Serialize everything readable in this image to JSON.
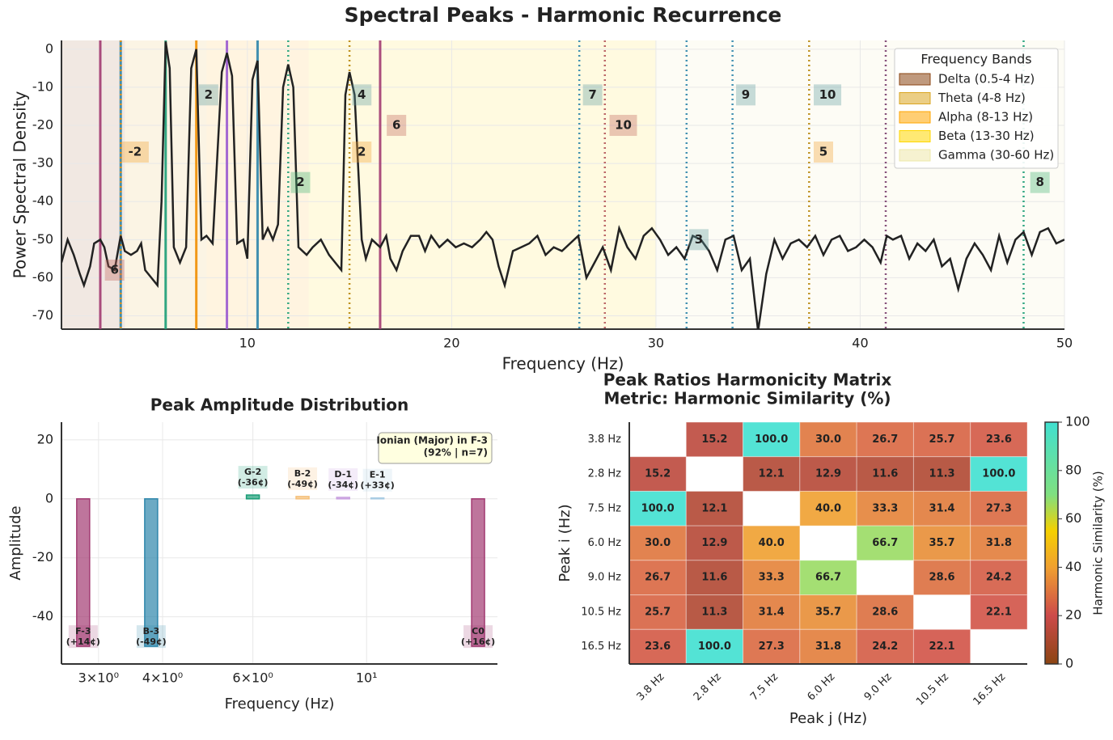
{
  "chart_data": [
    {
      "type": "line",
      "title": "Spectral Peaks - Harmonic Recurrence",
      "x_label": "Frequency (Hz)",
      "y_label": "Power Spectral Density",
      "xlim": [
        0.9,
        50
      ],
      "ylim": [
        -73.5,
        2.3
      ],
      "xticks": [
        10,
        20,
        30,
        40,
        50
      ],
      "yticks": [
        0,
        -10,
        -20,
        -30,
        -40,
        -50,
        -60,
        -70
      ],
      "grid": true,
      "color": "#222222",
      "x": [
        0.9,
        1.2,
        1.5,
        1.8,
        2.0,
        2.3,
        2.5,
        2.8,
        3.0,
        3.2,
        3.5,
        3.8,
        4.0,
        4.3,
        4.6,
        4.8,
        5.0,
        5.3,
        5.6,
        5.8,
        6.0,
        6.2,
        6.4,
        6.7,
        7.0,
        7.25,
        7.5,
        7.75,
        8.0,
        8.3,
        8.75,
        9.0,
        9.25,
        9.5,
        9.8,
        10.0,
        10.25,
        10.5,
        10.75,
        11.0,
        11.25,
        11.5,
        11.75,
        12.0,
        12.25,
        12.5,
        12.9,
        13.2,
        13.6,
        14.0,
        14.3,
        14.6,
        14.8,
        15.0,
        15.25,
        15.6,
        15.8,
        16.1,
        16.5,
        16.8,
        17.0,
        17.3,
        17.6,
        18.0,
        18.4,
        18.7,
        19.0,
        19.4,
        19.8,
        20.2,
        20.6,
        21.0,
        21.4,
        21.7,
        22.0,
        22.3,
        22.6,
        23.0,
        23.4,
        23.8,
        24.2,
        24.6,
        25.0,
        25.4,
        25.8,
        26.2,
        26.6,
        27.0,
        27.4,
        27.8,
        28.2,
        28.6,
        29.0,
        29.4,
        29.8,
        30.2,
        30.6,
        31.0,
        31.4,
        31.8,
        32.2,
        32.6,
        33.0,
        33.4,
        33.8,
        34.2,
        34.6,
        35.0,
        35.4,
        35.8,
        36.2,
        36.6,
        37.0,
        37.4,
        37.8,
        38.2,
        38.6,
        39.0,
        39.4,
        39.8,
        40.2,
        40.6,
        41.0,
        41.3,
        41.6,
        42.0,
        42.4,
        42.8,
        43.2,
        43.6,
        44.0,
        44.4,
        44.8,
        45.2,
        45.6,
        46.0,
        46.4,
        46.8,
        47.2,
        47.6,
        48.0,
        48.4,
        48.8,
        49.2,
        49.6,
        50.0
      ],
      "values": [
        -56,
        -50,
        -54,
        -59,
        -62,
        -57,
        -51,
        -50,
        -52,
        -57,
        -58,
        -49,
        -53,
        -54,
        -53,
        -51,
        -58,
        -60,
        -62,
        -40,
        2,
        -5,
        -52,
        -56,
        -52,
        -5,
        0,
        -50,
        -49,
        -51,
        -6,
        -1,
        -7,
        -51,
        -50,
        -55,
        -8,
        -3,
        -50,
        -47,
        -50,
        -46,
        -10,
        -4,
        -10,
        -52,
        -54,
        -52,
        -50,
        -54,
        -56,
        -58,
        -12,
        -6,
        -12,
        -50,
        -55,
        -50,
        -52,
        -49,
        -55,
        -58,
        -53,
        -49,
        -49,
        -53,
        -49,
        -52,
        -50,
        -52,
        -51,
        -52,
        -50,
        -48,
        -50,
        -57,
        -62,
        -53,
        -52,
        -51,
        -49,
        -54,
        -52,
        -53,
        -51,
        -49,
        -60,
        -56,
        -52,
        -58,
        -47,
        -52,
        -55,
        -49,
        -47,
        -50,
        -54,
        -52,
        -55,
        -49,
        -50,
        -53,
        -58,
        -50,
        -49,
        -58,
        -55,
        -74,
        -59,
        -50,
        -55,
        -51,
        -50,
        -52,
        -49,
        -54,
        -50,
        -49,
        -53,
        -52,
        -50,
        -52,
        -56,
        -49,
        -50,
        -49,
        -55,
        -51,
        -53,
        -50,
        -57,
        -55,
        -63,
        -55,
        -51,
        -54,
        -58,
        -49,
        -56,
        -50,
        -48,
        -54,
        -48,
        -47,
        -51,
        -50
      ],
      "bands": [
        {
          "name": "Delta (0.5-4 Hz)",
          "range": [
            0.5,
            4
          ],
          "color": "#8b4513"
        },
        {
          "name": "Theta (4-8 Hz)",
          "range": [
            4,
            8
          ],
          "color": "#daa520"
        },
        {
          "name": "Alpha (8-13 Hz)",
          "range": [
            8,
            13
          ],
          "color": "#ffa500"
        },
        {
          "name": "Beta (13-30 Hz)",
          "range": [
            13,
            30
          ],
          "color": "#ffd700"
        },
        {
          "name": "Gamma (30-60 Hz)",
          "range": [
            30,
            60
          ],
          "color": "#eee8aa"
        }
      ],
      "legend_title": "Frequency Bands",
      "legend": "upper right",
      "peak_lines": [
        {
          "x": 2.8,
          "color": "#a23b72",
          "style": "solid"
        },
        {
          "x": 3.8,
          "color": "#2e86ab",
          "style": "solid"
        },
        {
          "x": 3.8,
          "color": "#f18f01",
          "style": "dotted"
        },
        {
          "x": 6.0,
          "color": "#1b9e77",
          "style": "solid"
        },
        {
          "x": 7.5,
          "color": "#f18f01",
          "style": "solid"
        },
        {
          "x": 9.0,
          "color": "#9b59d0",
          "style": "solid"
        },
        {
          "x": 10.5,
          "color": "#2e86ab",
          "style": "solid"
        },
        {
          "x": 16.5,
          "color": "#a23b72",
          "style": "solid"
        },
        {
          "x": 12.0,
          "color": "#1b9e77",
          "style": "dotted"
        },
        {
          "x": 15.0,
          "color": "#b8860b",
          "style": "dotted"
        },
        {
          "x": 26.25,
          "color": "#2e86ab",
          "style": "dotted"
        },
        {
          "x": 27.5,
          "color": "#b5575a",
          "style": "dotted"
        },
        {
          "x": 31.5,
          "color": "#2e86ab",
          "style": "dotted"
        },
        {
          "x": 33.75,
          "color": "#2e86ab",
          "style": "dotted"
        },
        {
          "x": 37.5,
          "color": "#b8860b",
          "style": "dotted"
        },
        {
          "x": 41.25,
          "color": "#7b3f6e",
          "style": "dotted"
        },
        {
          "x": 48.0,
          "color": "#1b9e77",
          "style": "dotted"
        }
      ],
      "annotations": [
        {
          "text": "2",
          "x": 8.1,
          "y": -12,
          "color": "#5f9ea0"
        },
        {
          "text": "4",
          "x": 15.6,
          "y": -12,
          "color": "#5f9ea0"
        },
        {
          "text": "6",
          "x": 17.3,
          "y": -20,
          "color": "#c0605a"
        },
        {
          "text": "-2",
          "x": 4.5,
          "y": -27,
          "color": "#f0a030"
        },
        {
          "text": "2",
          "x": 15.6,
          "y": -27,
          "color": "#f0a030"
        },
        {
          "text": "2",
          "x": 12.6,
          "y": -35,
          "color": "#3cb371"
        },
        {
          "text": "7",
          "x": 26.9,
          "y": -12,
          "color": "#5f9ea0"
        },
        {
          "text": "10",
          "x": 28.4,
          "y": -20,
          "color": "#c0605a"
        },
        {
          "text": "9",
          "x": 34.4,
          "y": -12,
          "color": "#5f9ea0"
        },
        {
          "text": "10",
          "x": 38.4,
          "y": -12,
          "color": "#5f9ea0"
        },
        {
          "text": "5",
          "x": 38.2,
          "y": -27,
          "color": "#f0a030"
        },
        {
          "text": "3",
          "x": 32.1,
          "y": -50,
          "color": "#5f9ea0"
        },
        {
          "text": "8",
          "x": 48.8,
          "y": -35,
          "color": "#3cb371"
        },
        {
          "text": "6",
          "x": 3.5,
          "y": -58,
          "color": "#c0605a"
        }
      ]
    },
    {
      "type": "bar",
      "title": "Peak Amplitude Distribution",
      "x_label": "Frequency (Hz)",
      "y_label": "Amplitude",
      "log_x": true,
      "xlim": [
        2.54,
        18
      ],
      "ylim": [
        -56,
        26
      ],
      "xticks": [
        {
          "value": 3,
          "label": "3×10⁰"
        },
        {
          "value": 4,
          "label": "4×10⁰"
        },
        {
          "value": 6,
          "label": "6×10⁰"
        },
        {
          "value": 10,
          "label": "10¹"
        }
      ],
      "yticks": [
        -40,
        -20,
        0,
        20
      ],
      "grid": true,
      "x": [
        2.8,
        3.8,
        6.0,
        7.5,
        9.0,
        10.5,
        16.5
      ],
      "values": [
        -50,
        -50,
        1.3,
        0.8,
        0.5,
        0.3,
        -50
      ],
      "colors": [
        "#a23b72",
        "#2e86ab",
        "#1b9e77",
        "#f5c07a",
        "#c9a0e0",
        "#a9cce3",
        "#a23b72"
      ],
      "note_labels": [
        [
          "F-3",
          "(+14¢)"
        ],
        [
          "B-3",
          "(-49¢)"
        ],
        [
          "G-2",
          "(-36¢)"
        ],
        [
          "B-2",
          "(-49¢)"
        ],
        [
          "D-1",
          "(-34¢)"
        ],
        [
          "E-1",
          "(+33¢)"
        ],
        [
          "C0",
          "(+16¢)"
        ]
      ],
      "annotation": [
        "Ionian (Major) in F-3",
        "(92% | n=7)"
      ]
    },
    {
      "type": "heatmap",
      "title": "Peak Ratios Harmonicity Matrix",
      "subtitle": "Metric: Harmonic Similarity (%)",
      "x_label": "Peak j (Hz)",
      "y_label": "Peak i (Hz)",
      "colorbar_label": "Harmonic Similarity (%)",
      "categories": [
        "3.8 Hz",
        "2.8 Hz",
        "7.5 Hz",
        "6.0 Hz",
        "9.0 Hz",
        "10.5 Hz",
        "16.5 Hz"
      ],
      "clim": [
        0,
        100
      ],
      "cticks": [
        0,
        20,
        40,
        60,
        80,
        100
      ],
      "values": [
        [
          null,
          15.2,
          100,
          30,
          26.7,
          25.7,
          23.6
        ],
        [
          15.2,
          null,
          12.1,
          12.9,
          11.6,
          11.3,
          100
        ],
        [
          100,
          12.1,
          null,
          40,
          33.3,
          31.4,
          27.3
        ],
        [
          30,
          12.9,
          40,
          null,
          66.7,
          35.7,
          31.8
        ],
        [
          26.7,
          11.6,
          33.3,
          66.7,
          null,
          28.6,
          24.2
        ],
        [
          25.7,
          11.3,
          31.4,
          35.7,
          28.6,
          null,
          22.1
        ],
        [
          23.6,
          100,
          27.3,
          31.8,
          24.2,
          22.1,
          null
        ]
      ],
      "value_labels": [
        [
          null,
          "15.2",
          "100.0",
          "30.0",
          "26.7",
          "25.7",
          "23.6"
        ],
        [
          "15.2",
          null,
          "12.1",
          "12.9",
          "11.6",
          "11.3",
          "100.0"
        ],
        [
          "100.0",
          "12.1",
          null,
          "40.0",
          "33.3",
          "31.4",
          "27.3"
        ],
        [
          "30.0",
          "12.9",
          "40.0",
          null,
          "66.7",
          "35.7",
          "31.8"
        ],
        [
          "26.7",
          "11.6",
          "33.3",
          "66.7",
          null,
          "28.6",
          "24.2"
        ],
        [
          "25.7",
          "11.3",
          "31.4",
          "35.7",
          "28.6",
          null,
          "22.1"
        ],
        [
          "23.6",
          "100.0",
          "27.3",
          "31.8",
          "24.2",
          "22.1",
          null
        ]
      ]
    }
  ]
}
